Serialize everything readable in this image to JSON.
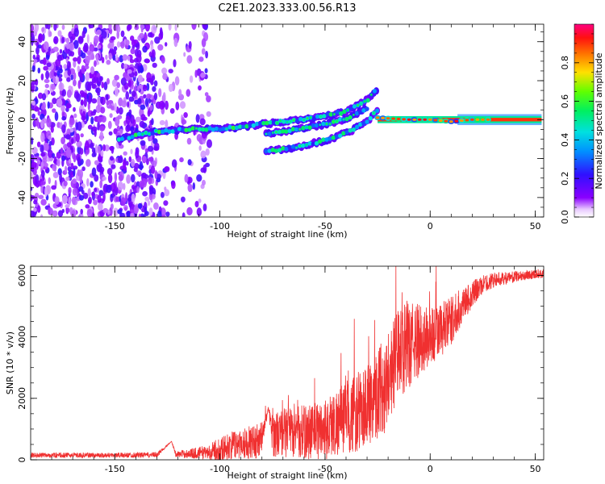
{
  "title": "C2E1.2023.333.00.56.R13",
  "colors": {
    "snr_line": "#f03030",
    "axis": "#000000"
  },
  "chart_data": [
    {
      "type": "heatmap",
      "name": "spectrogram",
      "xlabel": "Height of straight line (km)",
      "ylabel": "Frequency (Hz)",
      "xlim": [
        -190,
        54
      ],
      "ylim": [
        -50,
        49
      ],
      "xticks": [
        -150,
        -100,
        -50,
        0,
        50
      ],
      "yticks": [
        -40,
        -20,
        0,
        20,
        40
      ],
      "colorbar": {
        "label": "Normalized spectral amplitude",
        "ticks": [
          0.0,
          0.2,
          0.4,
          0.6,
          0.8
        ],
        "tick_labels": [
          "0.0",
          "0.2",
          "0.4",
          "0.6",
          "0.8"
        ],
        "range": [
          0,
          1
        ]
      },
      "noise_region_x": [
        -190,
        -105
      ],
      "tracks": [
        {
          "name": "main_track",
          "x": [
            -148,
            -130,
            -115,
            -100,
            -85,
            -70,
            -55,
            -40,
            -30,
            -25
          ],
          "y": [
            -10,
            -6,
            -5,
            -5,
            -3,
            -1,
            1,
            4,
            10,
            16
          ],
          "amp": 0.55
        },
        {
          "name": "second_track",
          "x": [
            -78,
            -68,
            -58,
            -48,
            -38,
            -30
          ],
          "y": [
            -7,
            -6,
            -4,
            -2,
            1,
            6
          ],
          "amp": 0.5
        },
        {
          "name": "lower_track",
          "x": [
            -78,
            -68,
            -58,
            -48,
            -38,
            -30,
            -25
          ],
          "y": [
            -16,
            -15,
            -13,
            -10,
            -6,
            -1,
            5
          ],
          "amp": 0.5
        },
        {
          "name": "carrier",
          "x": [
            -25,
            -10,
            0,
            10,
            20,
            35,
            53
          ],
          "y": [
            1,
            0,
            0,
            -1,
            0,
            0,
            0
          ],
          "amp": 0.95
        }
      ]
    },
    {
      "type": "line",
      "name": "snr",
      "xlabel": "Height of straight line (km)",
      "ylabel": "SNR (10 * v/v)",
      "xlim": [
        -190,
        54
      ],
      "ylim": [
        0,
        6300
      ],
      "xticks": [
        -150,
        -100,
        -50,
        0,
        50
      ],
      "yticks": [
        0,
        2000,
        4000,
        6000
      ],
      "series": [
        {
          "name": "SNR",
          "x": [
            -190,
            -170,
            -150,
            -130,
            -123,
            -121,
            -115,
            -105,
            -100,
            -95,
            -90,
            -85,
            -80,
            -77,
            -75,
            -70,
            -60,
            -50,
            -45,
            -40,
            -35,
            -30,
            -25,
            -22,
            -20,
            -18,
            -15,
            -10,
            -5,
            0,
            5,
            10,
            15,
            20,
            25,
            30,
            35,
            40,
            45,
            50,
            54
          ],
          "mean": [
            150,
            150,
            150,
            160,
            600,
            180,
            200,
            250,
            350,
            450,
            550,
            550,
            700,
            1700,
            800,
            900,
            900,
            1000,
            1200,
            1400,
            1500,
            1800,
            2200,
            2300,
            2800,
            3000,
            3500,
            3700,
            3900,
            4000,
            4200,
            4500,
            5000,
            5400,
            5700,
            5850,
            5900,
            5950,
            6000,
            6050,
            6050
          ],
          "amplitude": [
            80,
            80,
            80,
            90,
            0,
            90,
            150,
            250,
            400,
            450,
            500,
            550,
            600,
            0,
            700,
            800,
            900,
            1000,
            1100,
            1200,
            1300,
            1400,
            1500,
            1500,
            1500,
            1500,
            1500,
            1400,
            1200,
            1000,
            900,
            800,
            600,
            450,
            300,
            250,
            200,
            180,
            160,
            150,
            150
          ]
        }
      ]
    }
  ]
}
